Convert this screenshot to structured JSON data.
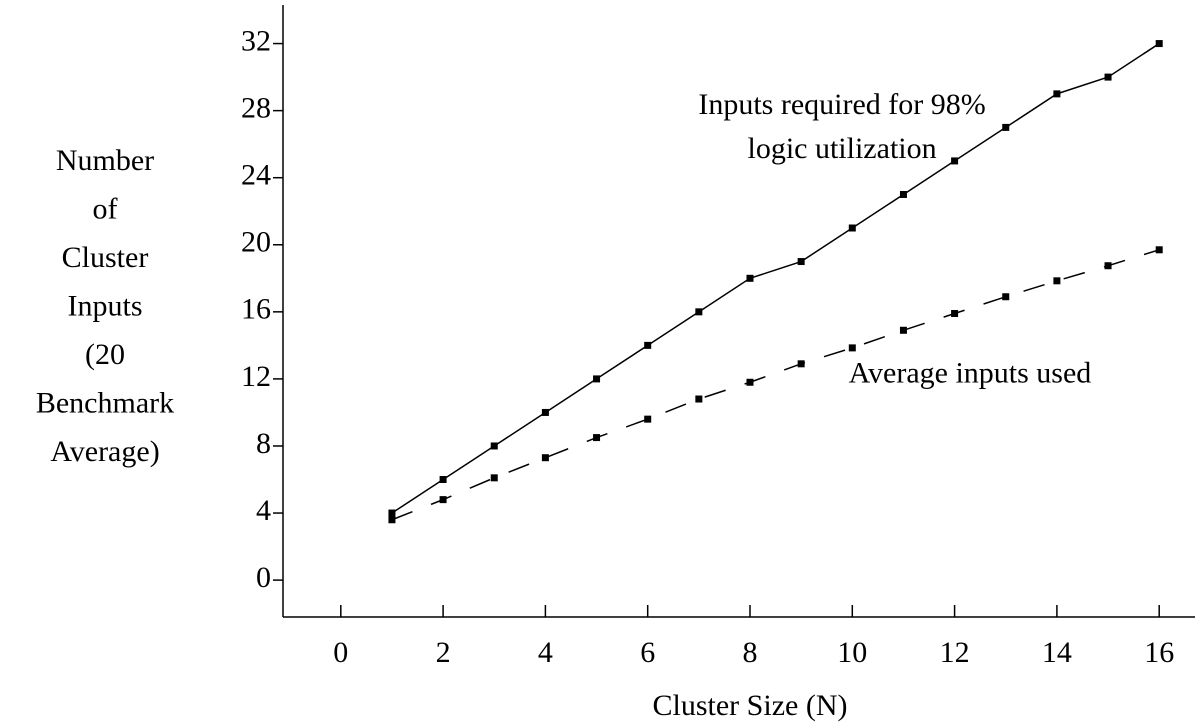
{
  "chart_data": {
    "type": "line",
    "xlabel": "Cluster Size (N)",
    "ylabel": [
      "Number",
      "of",
      "Cluster",
      "Inputs",
      "(20",
      "Benchmark",
      "Average)"
    ],
    "x": [
      1,
      2,
      3,
      4,
      5,
      6,
      7,
      8,
      9,
      10,
      11,
      12,
      13,
      14,
      15,
      16
    ],
    "series": [
      {
        "color": "#000000",
        "dash": "solid",
        "values": [
          4,
          6,
          8,
          10,
          12,
          14,
          16,
          18,
          19,
          21,
          23,
          25,
          27,
          29,
          30,
          32
        ]
      },
      {
        "color": "#000000",
        "dash": "dashed",
        "values": [
          3.6,
          4.8,
          6.1,
          7.3,
          8.5,
          9.6,
          10.8,
          11.8,
          12.9,
          13.85,
          14.9,
          15.9,
          16.9,
          17.85,
          18.75,
          19.7
        ]
      }
    ],
    "annotations": [
      {
        "lines": [
          "Inputs required for 98%",
          "logic utilization"
        ],
        "x": 9.8,
        "y": 28.2
      },
      {
        "lines": [
          "Average inputs used"
        ],
        "x": 12.3,
        "y": 12.2
      }
    ],
    "xlim": [
      -1.13,
      16.7
    ],
    "xticks": [
      0,
      2,
      4,
      6,
      8,
      10,
      12,
      14,
      16
    ],
    "ylim": [
      -2.2,
      34.3
    ],
    "yticks": [
      0,
      4,
      8,
      12,
      16,
      20,
      24,
      28,
      32
    ],
    "grid": false
  }
}
